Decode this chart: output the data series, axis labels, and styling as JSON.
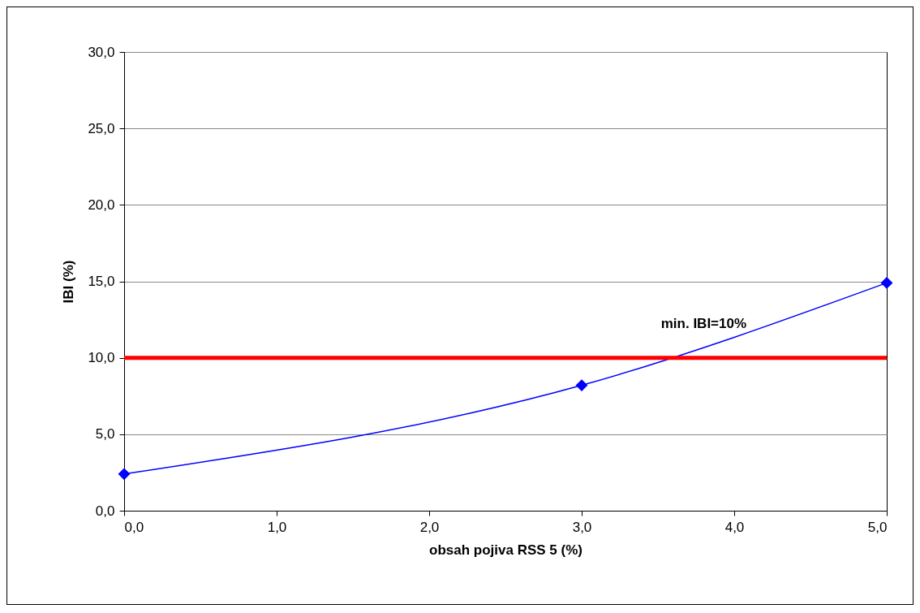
{
  "chart_data": {
    "type": "line",
    "xlabel": "obsah pojiva RSS 5 (%)",
    "ylabel": "IBI (%)",
    "x": [
      0,
      3,
      5
    ],
    "series": [
      {
        "color": "#0000ff",
        "values": [
          2.4,
          8.2,
          14.9
        ]
      }
    ],
    "xlim": [
      0,
      5
    ],
    "xticks": [
      {
        "value": 0,
        "label": "0,0"
      },
      {
        "value": 1,
        "label": "1,0"
      },
      {
        "value": 2,
        "label": "2,0"
      },
      {
        "value": 3,
        "label": "3,0"
      },
      {
        "value": 4,
        "label": "4,0"
      },
      {
        "value": 5,
        "label": "5,0"
      }
    ],
    "ylim": [
      0,
      30
    ],
    "yticks": [
      {
        "value": 0,
        "label": "0,0"
      },
      {
        "value": 5,
        "label": "5,0"
      },
      {
        "value": 10,
        "label": "10,0"
      },
      {
        "value": 15,
        "label": "15,0"
      },
      {
        "value": 20,
        "label": "20,0"
      },
      {
        "value": 25,
        "label": "25,0"
      },
      {
        "value": 30,
        "label": "30,0"
      }
    ],
    "ref_lines": [
      {
        "axis": "y",
        "value": 10,
        "label": "min. IBI=10%",
        "color": "#ff0000",
        "line_style": "solid"
      }
    ],
    "grid": "y",
    "marker": "diamond",
    "line_style": "solid"
  }
}
